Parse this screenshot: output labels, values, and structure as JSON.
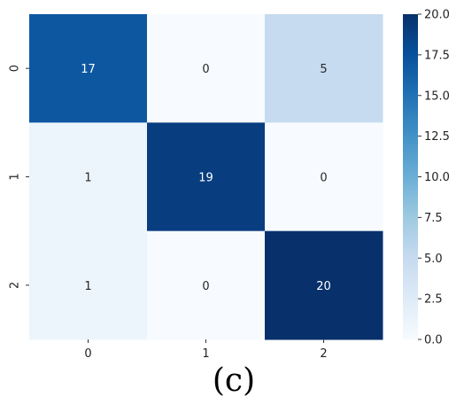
{
  "chart_data": {
    "type": "heatmap",
    "x_categories": [
      "0",
      "1",
      "2"
    ],
    "y_categories": [
      "0",
      "1",
      "2"
    ],
    "values": [
      [
        17,
        0,
        5
      ],
      [
        1,
        19,
        0
      ],
      [
        1,
        0,
        20
      ]
    ],
    "colorscale": "Blues",
    "colorbar": {
      "range": [
        0,
        20
      ],
      "ticks": [
        "0.0",
        "2.5",
        "5.0",
        "7.5",
        "10.0",
        "12.5",
        "15.0",
        "17.5",
        "20.0"
      ]
    },
    "caption": "(c)",
    "grid": false
  }
}
